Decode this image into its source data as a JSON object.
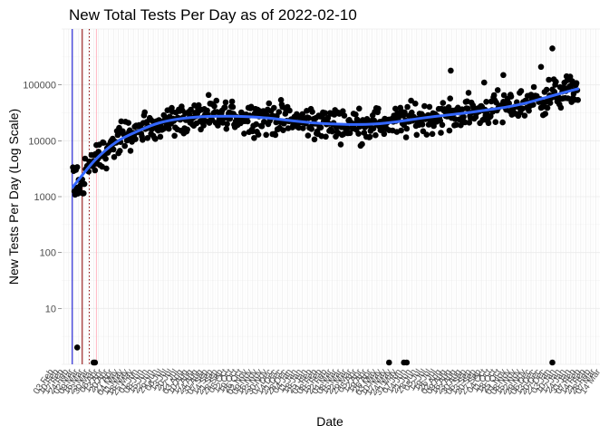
{
  "chart_data": {
    "type": "scatter",
    "title": "New Total Tests Per Day as of 2022-02-10",
    "xlabel": "Date",
    "ylabel": "New Tests Per Day (Log Scale)",
    "y_scale": "log10",
    "ylim": [
      1,
      1000000
    ],
    "xlim": [
      "2020-02-14",
      "2022-03-13"
    ],
    "y_ticks": [
      10,
      100,
      1000,
      10000,
      100000
    ],
    "y_tick_labels": [
      "10",
      "100",
      "1000",
      "10000",
      "100000"
    ],
    "x_tick_note": "one rotated date label per week (dense, overlapping); endpoints legible",
    "x_tick_first_label": "03 Feb",
    "x_tick_last_label": "28 Mar",
    "grid": true,
    "point_color": "#000000",
    "smooth_color": "#3366FF",
    "vertical_lines": [
      {
        "date": "2020-02-29",
        "color": "#0000CC",
        "style": "solid"
      },
      {
        "date": "2020-03-14",
        "color": "#8B0000",
        "style": "solid"
      },
      {
        "date": "2020-03-24",
        "color": "#8B0000",
        "style": "dotted"
      },
      {
        "date": "2020-04-03",
        "color": "#FFB6C1",
        "style": "solid"
      }
    ],
    "smooth": {
      "x": [
        "2020-03-01",
        "2020-04-01",
        "2020-05-01",
        "2020-06-01",
        "2020-07-01",
        "2020-08-01",
        "2020-09-01",
        "2020-10-01",
        "2020-11-01",
        "2020-12-01",
        "2021-01-01",
        "2021-02-01",
        "2021-03-01",
        "2021-04-01",
        "2021-05-01",
        "2021-06-01",
        "2021-07-01",
        "2021-08-01",
        "2021-09-01",
        "2021-10-01",
        "2021-11-01",
        "2021-12-01",
        "2022-01-01",
        "2022-02-10"
      ],
      "y": [
        1500,
        4500,
        9500,
        15000,
        21000,
        25000,
        27000,
        27500,
        27000,
        25500,
        23000,
        21000,
        20000,
        19500,
        20000,
        22000,
        25000,
        28000,
        31000,
        35000,
        40000,
        48000,
        62000,
        85000
      ]
    },
    "points": {
      "x": [],
      "y": []
    },
    "outlier_points": {
      "x": [
        "2020-03-07",
        "2020-03-30",
        "2020-04-01",
        "2021-05-20",
        "2021-06-10",
        "2021-06-14",
        "2022-01-05"
      ],
      "y": [
        2,
        1,
        1,
        1,
        1,
        1,
        1
      ]
    }
  }
}
